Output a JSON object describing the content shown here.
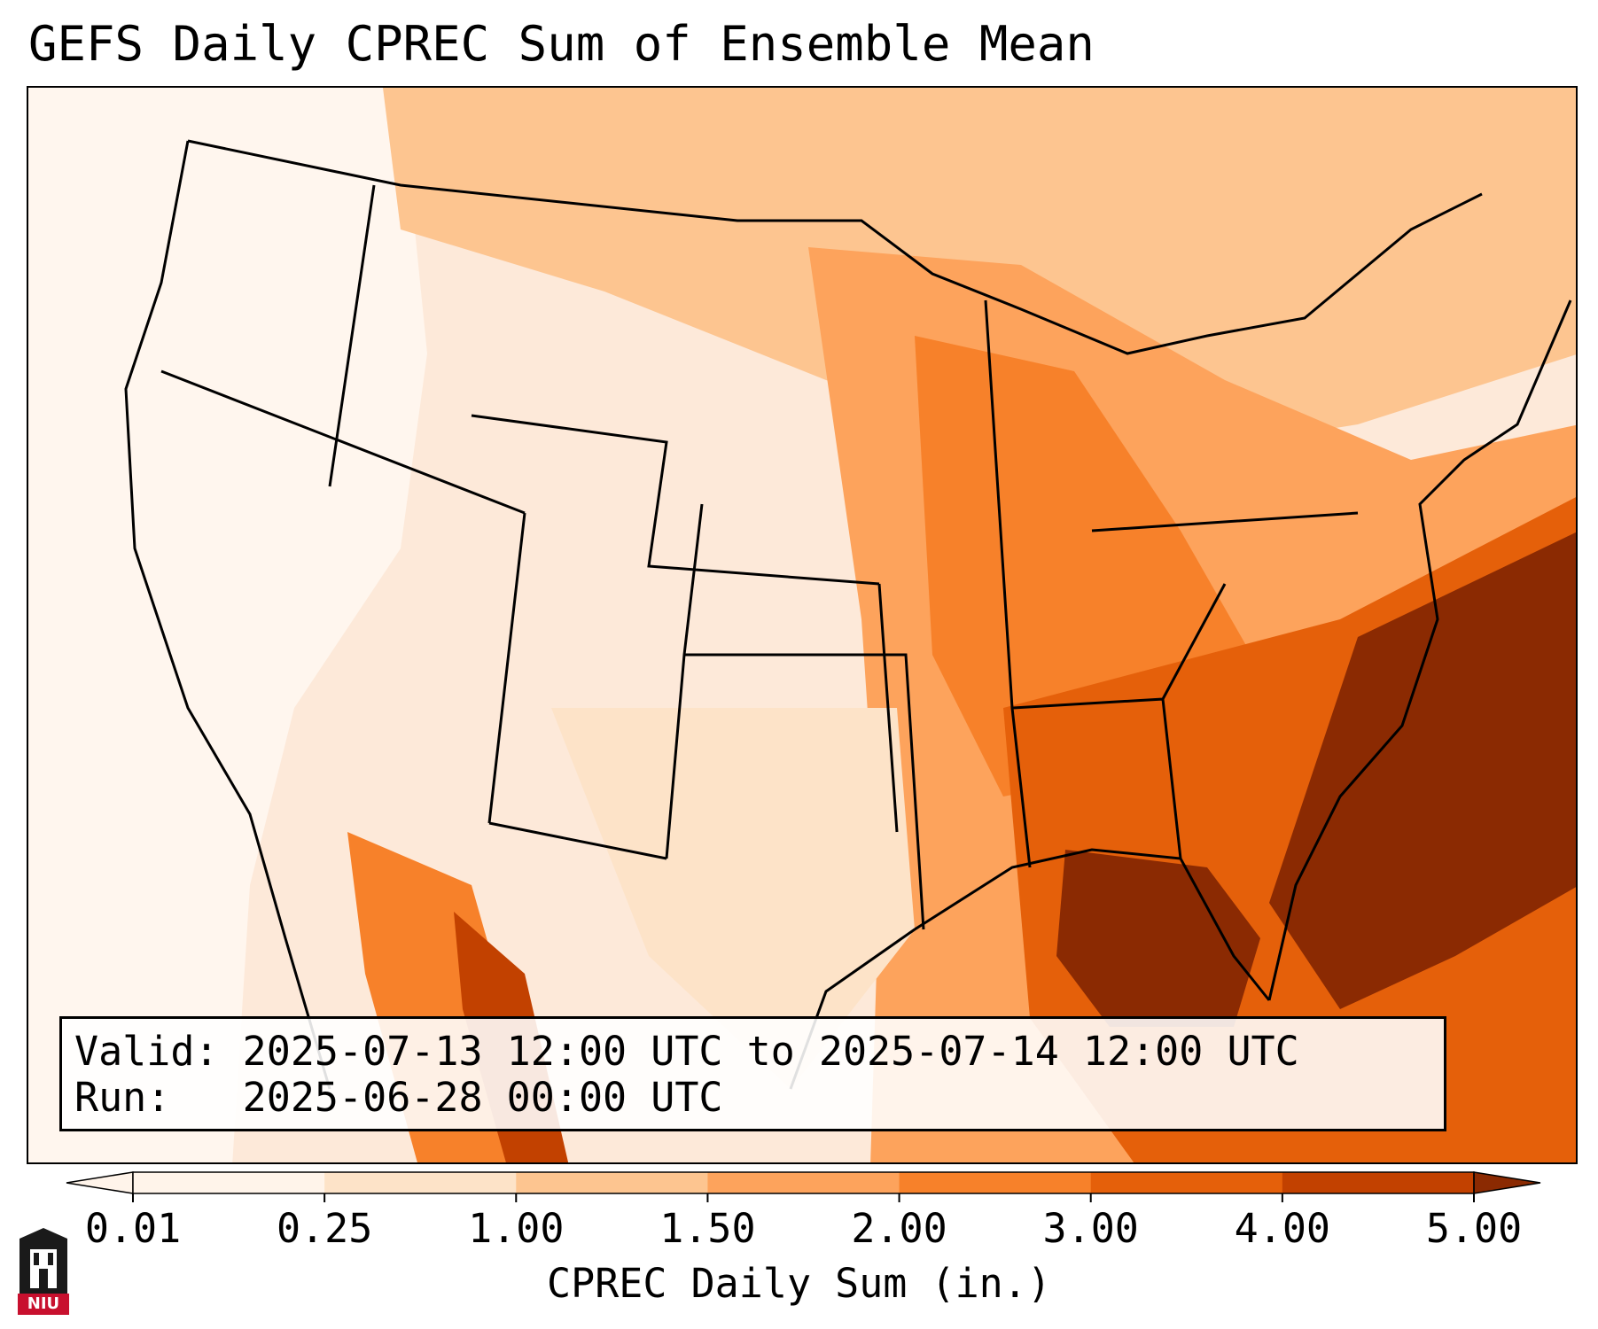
{
  "title": "GEFS Daily CPREC Sum of Ensemble Mean",
  "info": {
    "valid_label": "Valid:",
    "valid_value": "2025-07-13 12:00 UTC to 2025-07-14 12:00 UTC",
    "run_label": "Run:",
    "run_value": "2025-06-28 00:00 UTC"
  },
  "colorbar": {
    "label": "CPREC Daily Sum (in.)",
    "ticks": [
      "0.01",
      "0.25",
      "1.00",
      "1.50",
      "2.00",
      "3.00",
      "4.00",
      "5.00"
    ],
    "colors": [
      "#fff4ea",
      "#fde3c8",
      "#fdc590",
      "#fda35c",
      "#f7812a",
      "#e5600a",
      "#c24100",
      "#8b2a02"
    ]
  },
  "logo": {
    "text": "NIU",
    "color": "#c8102e"
  },
  "map": {
    "background": "#fde9d9",
    "outline_color": "#000000"
  }
}
